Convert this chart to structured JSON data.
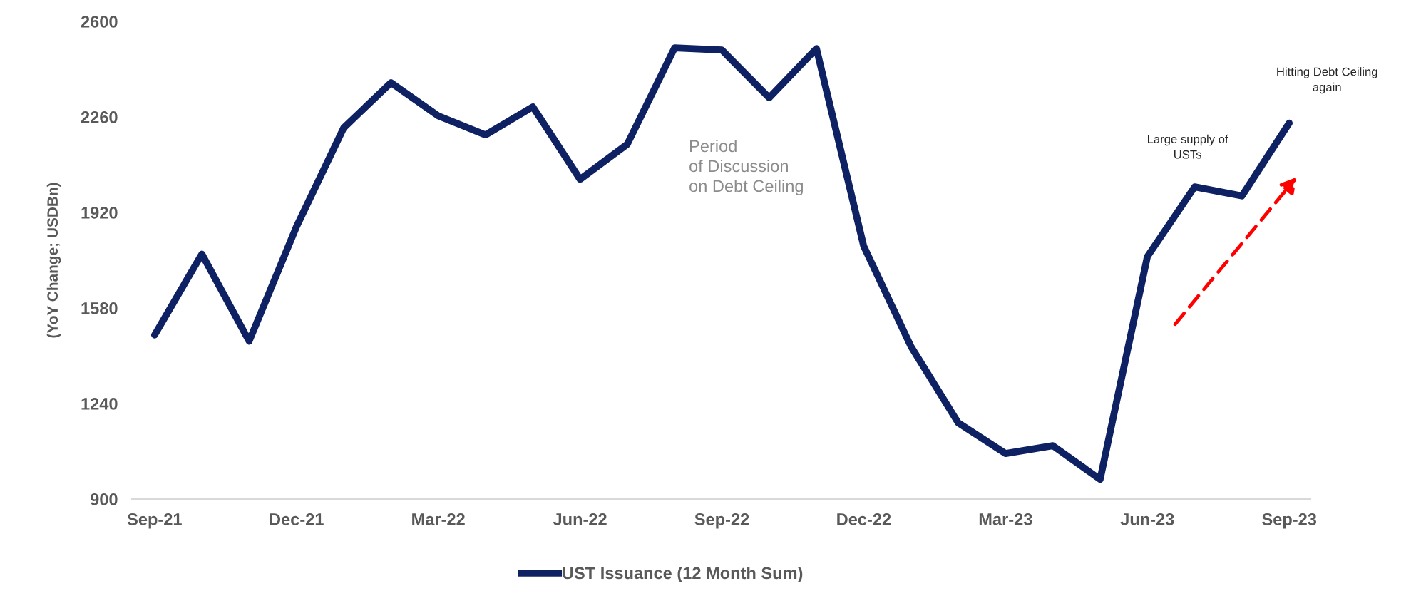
{
  "chart_data": {
    "type": "line",
    "ylabel": "(YoY Change; USDBn)",
    "categories": [
      "Sep-21",
      null,
      null,
      "Dec-21",
      null,
      null,
      "Mar-22",
      null,
      null,
      "Jun-22",
      null,
      null,
      "Sep-22",
      null,
      null,
      "Dec-22",
      null,
      null,
      "Mar-23",
      null,
      null,
      "Jun-23",
      null,
      null,
      "Sep-23"
    ],
    "series": [
      {
        "name": "UST Issuance (12 Month Sum)",
        "color": "#0e2163",
        "values": [
          1484,
          1772,
          1462,
          1869,
          2221,
          2382,
          2264,
          2196,
          2296,
          2038,
          2163,
          2506,
          2498,
          2328,
          2503,
          1800,
          1443,
          1171,
          1062,
          1090,
          970,
          1763,
          2011,
          1979,
          2238
        ]
      }
    ],
    "ylim": [
      900,
      2600
    ],
    "yticks": [
      900,
      1240,
      1580,
      1920,
      2260,
      2600
    ],
    "grid": false,
    "legend": "bottom",
    "marker": "none",
    "line_style": "solid",
    "annotations": [
      "Period of Discussion on Debt Ceiling",
      "Large supply of USTs",
      "Hitting Debt Ceiling again"
    ]
  }
}
